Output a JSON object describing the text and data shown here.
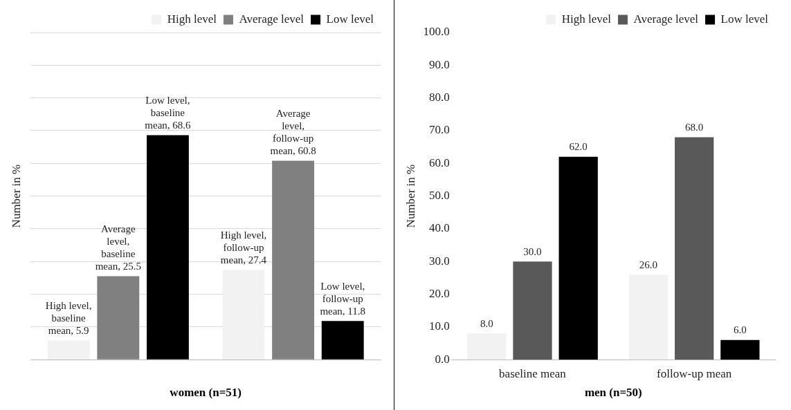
{
  "chart_data": [
    {
      "type": "bar",
      "xlabel": "women (n=51)",
      "ylabel": "Number in %",
      "categories": [
        null,
        null
      ],
      "ylim": [
        0,
        100
      ],
      "yticks": [
        {
          "value": 0,
          "label": null
        },
        {
          "value": 10,
          "label": null
        },
        {
          "value": 20,
          "label": null
        },
        {
          "value": 30,
          "label": null
        },
        {
          "value": 40,
          "label": null
        },
        {
          "value": 50,
          "label": null
        },
        {
          "value": 60,
          "label": null
        },
        {
          "value": 70,
          "label": null
        },
        {
          "value": 80,
          "label": null
        },
        {
          "value": 90,
          "label": null
        },
        {
          "value": 100,
          "label": null
        }
      ],
      "grid": "y",
      "legend": "top right",
      "series": [
        {
          "name": "High level",
          "color": "#f2f2f2",
          "values": [
            5.9,
            27.4
          ],
          "value_labels": [
            "High level, baseline mean, 5.9",
            "High level, follow-up mean, 27.4"
          ]
        },
        {
          "name": "Average level",
          "color": "#808080",
          "values": [
            25.5,
            60.8
          ],
          "value_labels": [
            "Average level, baseline mean, 25.5",
            "Average level, follow-up mean, 60.8"
          ]
        },
        {
          "name": "Low level",
          "color": "#000000",
          "values": [
            68.6,
            11.8
          ],
          "value_labels": [
            "Low level, baseline mean, 68.6",
            "Low level, follow-up mean, 11.8"
          ]
        }
      ]
    },
    {
      "type": "bar",
      "xlabel": "men (n=50)",
      "ylabel": "Number in %",
      "categories": [
        "baseline mean",
        "follow-up mean"
      ],
      "ylim": [
        0,
        100
      ],
      "yticks": [
        {
          "value": 0,
          "label": "0.0"
        },
        {
          "value": 10,
          "label": "10.0"
        },
        {
          "value": 20,
          "label": "20.0"
        },
        {
          "value": 30,
          "label": "30.0"
        },
        {
          "value": 40,
          "label": "40.0"
        },
        {
          "value": 50,
          "label": "50.0"
        },
        {
          "value": 60,
          "label": "60.0"
        },
        {
          "value": 70,
          "label": "70.0"
        },
        {
          "value": 80,
          "label": "80.0"
        },
        {
          "value": 90,
          "label": "90.0"
        },
        {
          "value": 100,
          "label": "100.0"
        }
      ],
      "grid": false,
      "legend": "top right",
      "series": [
        {
          "name": "High level",
          "color": "#f2f2f2",
          "values": [
            8,
            26
          ],
          "value_labels": [
            "8.0",
            "26.0"
          ]
        },
        {
          "name": "Average level",
          "color": "#595959",
          "values": [
            30,
            68
          ],
          "value_labels": [
            "30.0",
            "68.0"
          ]
        },
        {
          "name": "Low level",
          "color": "#000000",
          "values": [
            62,
            6
          ],
          "value_labels": [
            "62.0",
            "6.0"
          ]
        }
      ]
    }
  ]
}
